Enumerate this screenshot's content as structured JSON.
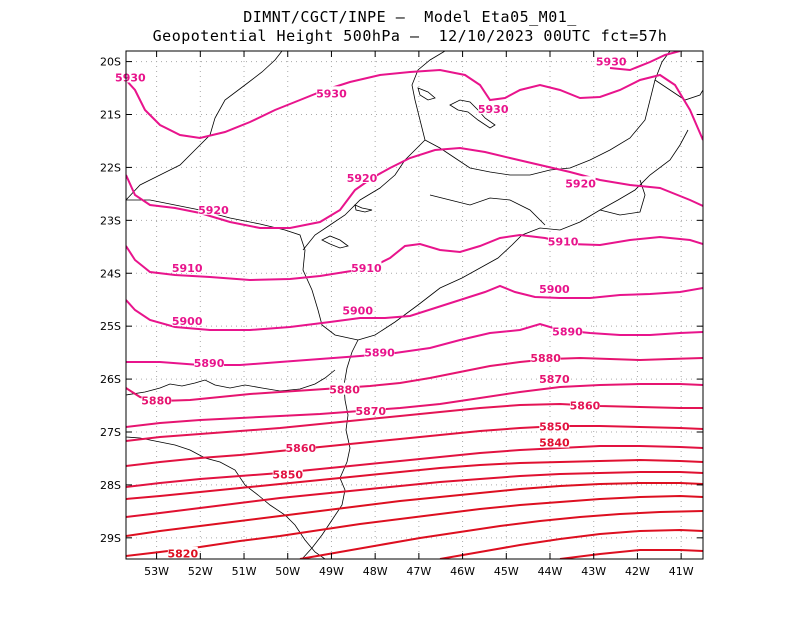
{
  "header": {
    "line1": "DIMNT/CGCT/INPE —  Model Eta05_M01_",
    "line2": "Geopotential Height 500hPa —  12/10/2023 00UTC fct=57h"
  },
  "map_data": {
    "lon_range": [
      -53.7,
      -40.5
    ],
    "lat_range": [
      -29.4,
      -19.8
    ],
    "lon_ticks": [
      -53,
      -52,
      -51,
      -50,
      -49,
      -48,
      -47,
      -46,
      -45,
      -44,
      -43,
      -42,
      -41
    ],
    "lon_labels": [
      "53W",
      "52W",
      "51W",
      "50W",
      "49W",
      "48W",
      "47W",
      "46W",
      "45W",
      "44W",
      "43W",
      "42W",
      "41W"
    ],
    "lat_ticks": [
      -20,
      -21,
      -22,
      -23,
      -24,
      -25,
      -26,
      -27,
      -28,
      -29
    ],
    "lat_labels": [
      "20S",
      "21S",
      "22S",
      "23S",
      "24S",
      "25S",
      "26S",
      "27S",
      "28S",
      "29S"
    ],
    "grid": true,
    "contour_units": "gpm",
    "contour_labels": [
      {
        "text": "5930",
        "lon": -53.6,
        "lat": -20.3,
        "color": "#e8148c"
      },
      {
        "text": "5930",
        "lon": -49.0,
        "lat": -20.6,
        "color": "#e8148c"
      },
      {
        "text": "5930",
        "lon": -45.3,
        "lat": -20.9,
        "color": "#e8148c"
      },
      {
        "text": "5930",
        "lon": -42.6,
        "lat": -20.0,
        "color": "#e8148c"
      },
      {
        "text": "5920",
        "lon": -48.3,
        "lat": -22.2,
        "color": "#e8148c"
      },
      {
        "text": "5920",
        "lon": -51.7,
        "lat": -22.8,
        "color": "#e8148c"
      },
      {
        "text": "5920",
        "lon": -43.3,
        "lat": -22.3,
        "color": "#e8148c"
      },
      {
        "text": "5910",
        "lon": -52.3,
        "lat": -23.9,
        "color": "#e8148c"
      },
      {
        "text": "5910",
        "lon": -48.2,
        "lat": -23.9,
        "color": "#e8148c"
      },
      {
        "text": "5910",
        "lon": -43.7,
        "lat": -23.4,
        "color": "#e8148c"
      },
      {
        "text": "5900",
        "lon": -52.3,
        "lat": -24.9,
        "color": "#e8148c"
      },
      {
        "text": "5900",
        "lon": -48.4,
        "lat": -24.7,
        "color": "#e8148c"
      },
      {
        "text": "5900",
        "lon": -43.9,
        "lat": -24.3,
        "color": "#e8148c"
      },
      {
        "text": "5890",
        "lon": -51.8,
        "lat": -25.7,
        "color": "#e8148c"
      },
      {
        "text": "5890",
        "lon": -47.9,
        "lat": -25.5,
        "color": "#e8148c"
      },
      {
        "text": "5890",
        "lon": -43.6,
        "lat": -25.1,
        "color": "#e8148c"
      },
      {
        "text": "5880",
        "lon": -53.0,
        "lat": -26.4,
        "color": "#e61470"
      },
      {
        "text": "5880",
        "lon": -48.7,
        "lat": -26.2,
        "color": "#e61470"
      },
      {
        "text": "5880",
        "lon": -44.1,
        "lat": -25.6,
        "color": "#e61470"
      },
      {
        "text": "5870",
        "lon": -48.1,
        "lat": -26.6,
        "color": "#e61470"
      },
      {
        "text": "5870",
        "lon": -43.9,
        "lat": -26.0,
        "color": "#e61470"
      },
      {
        "text": "5860",
        "lon": -49.7,
        "lat": -27.3,
        "color": "#e41455"
      },
      {
        "text": "5860",
        "lon": -43.2,
        "lat": -26.5,
        "color": "#e41455"
      },
      {
        "text": "5850",
        "lon": -50.0,
        "lat": -27.8,
        "color": "#e21240"
      },
      {
        "text": "5850",
        "lon": -43.9,
        "lat": -26.9,
        "color": "#e21240"
      },
      {
        "text": "5840",
        "lon": -43.9,
        "lat": -27.2,
        "color": "#e01030"
      },
      {
        "text": "5820",
        "lon": -52.4,
        "lat": -29.3,
        "color": "#dd0f20"
      }
    ]
  }
}
